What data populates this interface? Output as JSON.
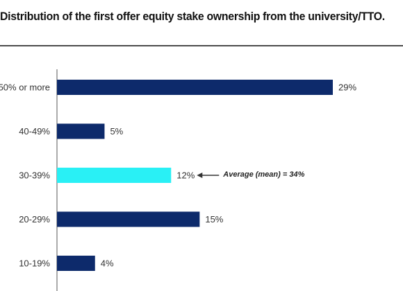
{
  "title": "Distribution of the first offer equity stake ownership from the university/TTO.",
  "chart_data": {
    "type": "bar",
    "orientation": "horizontal",
    "categories": [
      "50% or more",
      "40-49%",
      "30-39%",
      "20-29%",
      "10-19%"
    ],
    "values": [
      29,
      5,
      12,
      15,
      4
    ],
    "value_labels": [
      "29%",
      "5%",
      "12%",
      "15%",
      "4%"
    ],
    "highlight_category": "30-39%",
    "xlim": [
      0,
      29
    ],
    "colors": {
      "bar": "#0d2a6b",
      "highlight": "#29f0f5",
      "axis": "#555555"
    },
    "annotation": {
      "category": "30-39%",
      "text": "Average (mean) = 34%"
    },
    "grid": false
  }
}
